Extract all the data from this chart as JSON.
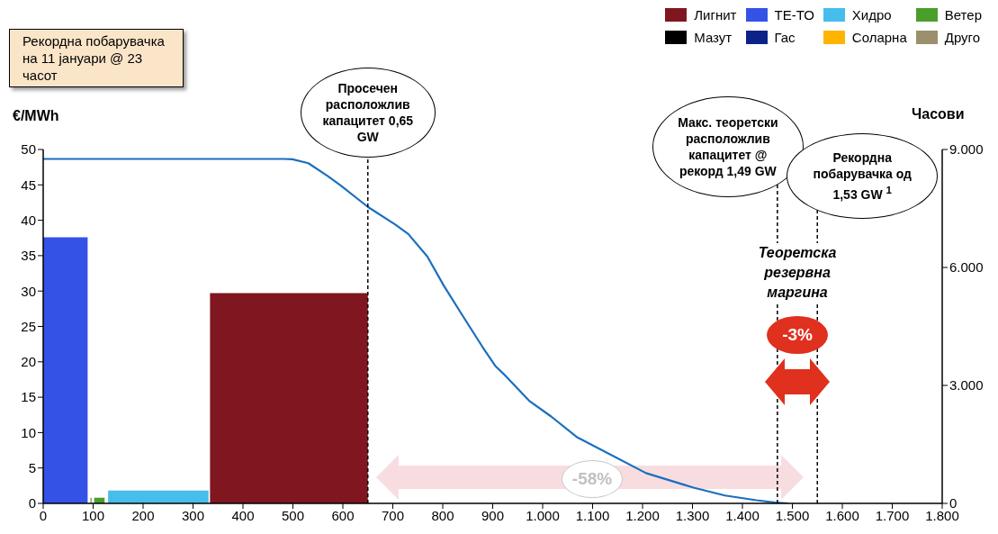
{
  "chart_data": {
    "type": "area",
    "ylabel": "€/MWh",
    "y2label": "Часови",
    "legend": "top right",
    "xlim": [
      0,
      1800
    ],
    "ylim": [
      0,
      50
    ],
    "y2lim": [
      0,
      9000
    ],
    "xticks": [
      0,
      100,
      200,
      300,
      400,
      500,
      600,
      700,
      800,
      900,
      {
        "value": 1000,
        "label": "1.000"
      },
      {
        "value": 1100,
        "label": "1.100"
      },
      {
        "value": 1200,
        "label": "1.200"
      },
      {
        "value": 1300,
        "label": "1.300"
      },
      {
        "value": 1400,
        "label": "1.400"
      },
      {
        "value": 1500,
        "label": "1.500"
      },
      {
        "value": 1600,
        "label": "1.600"
      },
      {
        "value": 1700,
        "label": "1.700"
      },
      {
        "value": 1800,
        "label": "1.800"
      }
    ],
    "yticks": [
      0,
      5,
      10,
      15,
      20,
      25,
      30,
      35,
      40,
      45,
      50
    ],
    "y2ticks": [
      0,
      {
        "value": 3000,
        "label": "3.000"
      },
      {
        "value": 6000,
        "label": "6.000"
      },
      {
        "value": 9000,
        "label": "9.000"
      }
    ],
    "series": [
      {
        "name": "Лигнит",
        "color": "#7f1620",
        "x": [
          334,
          650
        ],
        "values": [
          29.7,
          29.7
        ]
      },
      {
        "name": "ТЕ-ТО",
        "color": "#3552e6",
        "x": [
          0,
          89
        ],
        "values": [
          37.6,
          37.6
        ]
      },
      {
        "name": "Хидро",
        "color": "#46bdec",
        "x": [
          130,
          331
        ],
        "values": [
          1.8,
          1.8
        ]
      },
      {
        "name": "Ветер",
        "color": "#4a9e2a",
        "x": [
          102,
          123
        ],
        "values": [
          0.8,
          0.8
        ]
      },
      {
        "name": "Мазут",
        "color": "#000000"
      },
      {
        "name": "Гас",
        "color": "#0c2288"
      },
      {
        "name": "Соларна",
        "color": "#ffb400"
      },
      {
        "name": "Друго",
        "type": "bar",
        "color": "#9b8f6e",
        "x": [
          96
        ],
        "values": [
          0.8
        ]
      },
      {
        "type": "line",
        "axis": "y2",
        "color": "#1a6fbf",
        "x": [
          0,
          482,
          499,
          531,
          570,
          596,
          650,
          705,
          731,
          769,
          802,
          834,
          879,
          905,
          922,
          973,
          1017,
          1068,
          1207,
          1302,
          1365,
          1428,
          1466,
          1492
        ],
        "values": [
          8760,
          8760,
          8750,
          8650,
          8320,
          8080,
          7540,
          7090,
          6850,
          6280,
          5540,
          4890,
          3990,
          3500,
          3290,
          2610,
          2210,
          1690,
          770,
          400,
          200,
          80,
          20,
          0
        ]
      }
    ],
    "ref_lines": [
      {
        "axis": "x",
        "value": 650,
        "label": "Просечен расположлив капацитет 0,65 GW",
        "line_style": "dashed",
        "color": "#000000"
      },
      {
        "axis": "x",
        "value": 1470,
        "label": "Макс. теоретски расположлив капацитет @ рекорд 1,49 GW",
        "line_style": "dashed",
        "color": "#000000"
      },
      {
        "axis": "x",
        "value": 1550,
        "label": "Рекордна побарувачка од 1,53 GW $^{1}$",
        "line_style": "dashed",
        "color": "#000000"
      }
    ],
    "annotations": [
      "Рекордна побарувачка на 11 јануари @ 23 часот",
      "Теоретска резервна маргина",
      "-3%",
      "-58%"
    ]
  }
}
